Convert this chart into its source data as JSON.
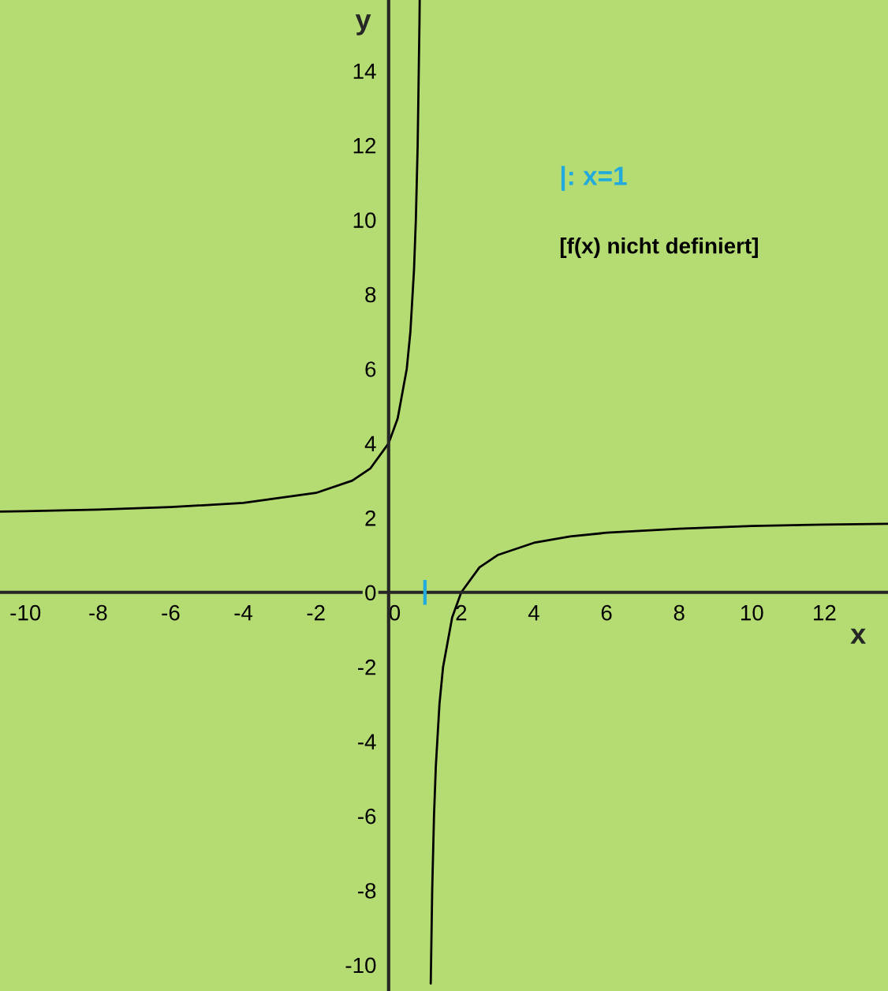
{
  "chart_data": {
    "type": "line",
    "xlabel": "x",
    "ylabel": "y",
    "xlim": [
      -10.7,
      13.75
    ],
    "ylim": [
      -10.7,
      15.9
    ],
    "xticks": [
      -10,
      -8,
      -6,
      -4,
      -2,
      0,
      2,
      4,
      6,
      8,
      10,
      12
    ],
    "yticks": [
      -10,
      -8,
      -6,
      -4,
      -2,
      0,
      2,
      4,
      6,
      8,
      10,
      12,
      14
    ],
    "grid": false,
    "legend": false,
    "marker": "none",
    "line_style": "solid",
    "series": [
      {
        "color": "#000000",
        "x": [
          -10.7,
          -10,
          -8,
          -6,
          -4,
          -2,
          -1,
          -0.5,
          0,
          0.25,
          0.5,
          0.6,
          0.7,
          0.75,
          0.8,
          0.85,
          0.856
        ],
        "values": [
          2.17,
          2.18,
          2.22,
          2.29,
          2.4,
          2.67,
          3,
          3.33,
          4,
          4.67,
          6,
          7,
          8.67,
          10,
          12,
          15.33,
          15.89
        ]
      },
      {
        "color": "#000000",
        "x": [
          1.16,
          1.2,
          1.25,
          1.3,
          1.4,
          1.5,
          1.75,
          2,
          2.5,
          3,
          4,
          5,
          6,
          8,
          10,
          12,
          13.75
        ],
        "values": [
          -10.5,
          -8,
          -6,
          -4.67,
          -3,
          -2,
          -0.67,
          0,
          0.67,
          1,
          1.33,
          1.5,
          1.6,
          1.71,
          1.78,
          1.82,
          1.84
        ]
      }
    ],
    "annotations": [
      "|: x=1",
      "[f(x) nicht definiert]",
      "|"
    ]
  }
}
